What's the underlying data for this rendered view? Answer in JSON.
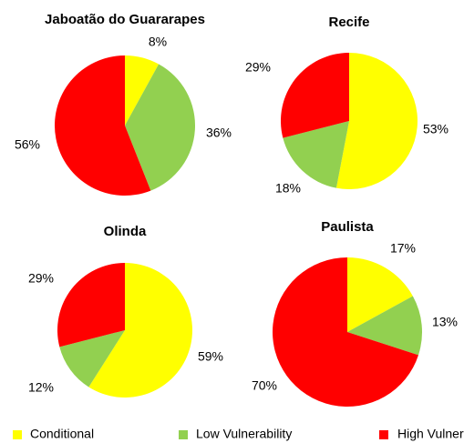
{
  "chart_data": [
    {
      "type": "pie",
      "title": "Jaboatão do Guararapes",
      "values": [
        8,
        36,
        56
      ],
      "value_labels": [
        "8%",
        "36%",
        "56%"
      ]
    },
    {
      "type": "pie",
      "title": "Recife",
      "values": [
        53,
        18,
        29
      ],
      "value_labels": [
        "53%",
        "18%",
        "29%"
      ]
    },
    {
      "type": "pie",
      "title": "Olinda",
      "values": [
        59,
        12,
        29
      ],
      "value_labels": [
        "59%",
        "12%",
        "29%"
      ]
    },
    {
      "type": "pie",
      "title": "Paulista",
      "values": [
        17,
        13,
        70
      ],
      "value_labels": [
        "17%",
        "13%",
        "70%"
      ]
    }
  ],
  "legend": {
    "labels": [
      "Conditional",
      "Low Vulnerability",
      "High Vulnerability"
    ],
    "colors": [
      "#ffff00",
      "#92d050",
      "#ff0000"
    ]
  }
}
